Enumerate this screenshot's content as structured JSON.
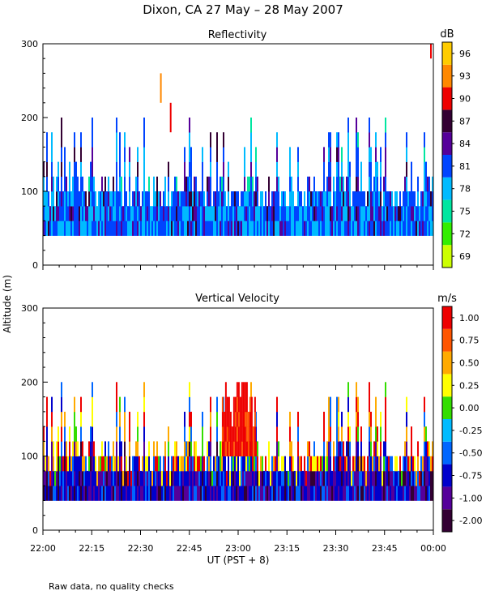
{
  "figure": {
    "title": "Dixon, CA 27 May – 28 May 2007",
    "footer_note": "Raw data, no quality checks",
    "ylabel": "Altitude (m)",
    "xlabel": "UT  (PST + 8)"
  },
  "colors": {
    "reflectivity_scale": [
      "#ccff00",
      "#33ee00",
      "#00e6a0",
      "#00bbff",
      "#0044ff",
      "#55009a",
      "#330033",
      "#ee0000",
      "#ff8800",
      "#ffcc00"
    ],
    "velocity_scale": [
      "#330033",
      "#55009a",
      "#0000cc",
      "#0066ff",
      "#00bbff",
      "#33dd00",
      "#ffff00",
      "#ffaa00",
      "#ff5500",
      "#ee0000"
    ]
  },
  "chart_data": [
    {
      "type": "heatmap",
      "title": "Reflectivity",
      "xlabel": "UT  (PST + 8)",
      "ylabel": "Altitude (m)",
      "x_ticks": [
        "22:00",
        "22:15",
        "22:30",
        "22:45",
        "23:00",
        "23:15",
        "23:30",
        "23:45",
        "00:00"
      ],
      "y_ticks": [
        "0",
        "100",
        "200",
        "300"
      ],
      "ylim": [
        0,
        300
      ],
      "colorbar": {
        "unit": "dB",
        "labels": [
          "69",
          "72",
          "75",
          "78",
          "81",
          "84",
          "87",
          "90",
          "93",
          "96"
        ],
        "range": [
          67.5,
          97.5
        ]
      },
      "data_summary": {
        "echo_base_altitude_m": 40,
        "typical_echo_top_m": [
          80,
          140
        ],
        "max_echo_top_m": 260,
        "dominant_values_db": [
          78,
          81,
          84
        ],
        "isolated_high_values_db": [
          90,
          93
        ],
        "isolated_returns": [
          {
            "time": "22:36",
            "altitude_m": [
              220,
              260
            ],
            "value_db": 93
          },
          {
            "time": "22:39",
            "altitude_m": [
              180,
              220
            ],
            "value_db": 90
          },
          {
            "time": "23:59",
            "altitude_m": [
              280,
              300
            ],
            "value_db": 90
          }
        ]
      }
    },
    {
      "type": "heatmap",
      "title": "Vertical Velocity",
      "xlabel": "UT  (PST + 8)",
      "ylabel": "Altitude (m)",
      "x_ticks": [
        "22:00",
        "22:15",
        "22:30",
        "22:45",
        "23:00",
        "23:15",
        "23:30",
        "23:45",
        "00:00"
      ],
      "y_ticks": [
        "0",
        "100",
        "200",
        "300"
      ],
      "ylim": [
        0,
        300
      ],
      "colorbar": {
        "unit": "m/s",
        "labels": [
          "1.00",
          "0.75",
          "0.50",
          "0.25",
          "0.00",
          "-0.25",
          "-0.50",
          "-0.75",
          "-1.00",
          "-2.00"
        ],
        "range": [
          -2.0,
          1.0
        ]
      },
      "data_summary": {
        "echo_base_altitude_m": 40,
        "typical_echo_top_m": [
          80,
          140
        ],
        "max_echo_top_m": 260,
        "low_levels_dominant_mps": [
          -1.0,
          -0.75,
          -0.5
        ],
        "upper_levels_dominant_mps": [
          0.25,
          0.5,
          1.0
        ],
        "strong_updraft_period": [
          "22:55",
          "23:05"
        ]
      }
    }
  ]
}
